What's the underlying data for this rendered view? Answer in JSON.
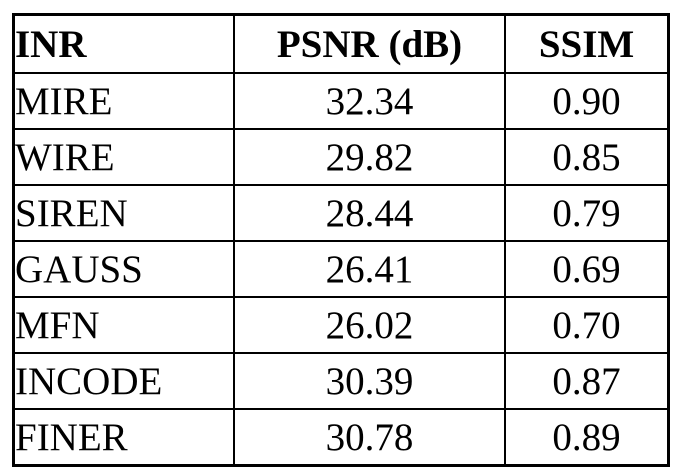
{
  "table": {
    "columns": {
      "inr": "INR",
      "psnr": "PSNR (dB)",
      "ssim": "SSIM"
    },
    "rows": [
      {
        "inr": "MIRE",
        "psnr": "32.34",
        "ssim": "0.90"
      },
      {
        "inr": "WIRE",
        "psnr": "29.82",
        "ssim": "0.85"
      },
      {
        "inr": "SIREN",
        "psnr": "28.44",
        "ssim": "0.79"
      },
      {
        "inr": "GAUSS",
        "psnr": "26.41",
        "ssim": "0.69"
      },
      {
        "inr": "MFN",
        "psnr": "26.02",
        "ssim": "0.70"
      },
      {
        "inr": "INCODE",
        "psnr": "30.39",
        "ssim": "0.87"
      },
      {
        "inr": "FINER",
        "psnr": "30.78",
        "ssim": "0.89"
      }
    ],
    "colors": {
      "border": "#000000",
      "text": "#000000",
      "background": "#ffffff"
    }
  }
}
